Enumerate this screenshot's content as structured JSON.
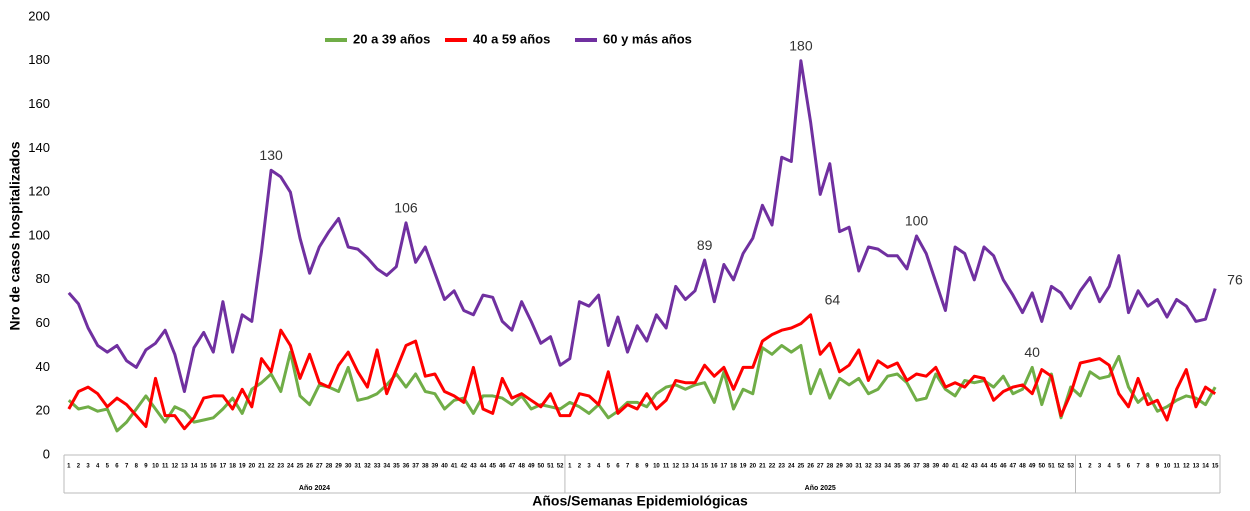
{
  "chart_data": {
    "type": "line",
    "y_label": "Nro de casos hospitalizados",
    "x_label": "Años/Semanas Epidemiológicas",
    "categories": [
      "1",
      "2",
      "3",
      "4",
      "5",
      "6",
      "7",
      "8",
      "9",
      "10",
      "11",
      "12",
      "13",
      "14",
      "15",
      "16",
      "17",
      "18",
      "19",
      "20",
      "21",
      "22",
      "23",
      "24",
      "25",
      "26",
      "27",
      "28",
      "29",
      "30",
      "31",
      "32",
      "33",
      "34",
      "35",
      "36",
      "37",
      "38",
      "39",
      "40",
      "41",
      "42",
      "43",
      "44",
      "45",
      "46",
      "47",
      "48",
      "49",
      "50",
      "51",
      "52",
      "1",
      "2",
      "3",
      "4",
      "5",
      "6",
      "7",
      "8",
      "9",
      "10",
      "11",
      "12",
      "13",
      "14",
      "15",
      "16",
      "17",
      "18",
      "19",
      "20",
      "21",
      "22",
      "23",
      "24",
      "25",
      "26",
      "27",
      "28",
      "29",
      "30",
      "31",
      "32",
      "33",
      "34",
      "35",
      "36",
      "37",
      "38",
      "39",
      "40",
      "41",
      "42",
      "43",
      "44",
      "45",
      "46",
      "47",
      "48",
      "49",
      "50",
      "51",
      "52",
      "53",
      "1",
      "2",
      "3",
      "4",
      "5",
      "6",
      "7",
      "8",
      "9",
      "10",
      "11",
      "12",
      "13",
      "14",
      "15"
    ],
    "groups": [
      "Año 2024",
      "Año 2025",
      null
    ],
    "ylim": [
      0,
      200
    ],
    "yticks": [
      0,
      20,
      40,
      60,
      80,
      100,
      120,
      140,
      160,
      180,
      200
    ],
    "grid": false,
    "legend": "top",
    "series": [
      {
        "name": "20 a 39 años",
        "color": "#70ad47",
        "values": [
          25,
          21,
          22,
          20,
          21,
          11,
          15,
          21,
          27,
          21,
          15,
          22,
          20,
          15,
          16,
          17,
          21,
          26,
          19,
          30,
          33,
          37,
          29,
          47,
          27,
          23,
          32,
          31,
          29,
          40,
          25,
          26,
          28,
          32,
          37,
          31,
          37,
          29,
          28,
          21,
          25,
          26,
          19,
          27,
          27,
          26,
          23,
          27,
          21,
          23,
          22,
          21,
          24,
          22,
          19,
          23,
          17,
          20,
          24,
          24,
          22,
          28,
          31,
          32,
          30,
          32,
          33,
          24,
          38,
          21,
          30,
          28,
          49,
          46,
          50,
          47,
          50,
          28,
          39,
          26,
          35,
          32,
          35,
          28,
          30,
          36,
          37,
          33,
          25,
          26,
          37,
          30,
          27,
          34,
          33,
          34,
          31,
          36,
          28,
          30,
          40,
          23,
          37,
          17,
          31,
          27,
          38,
          35,
          36,
          45,
          31,
          24,
          28,
          20,
          22,
          25,
          27,
          26,
          23,
          31
        ],
        "value_labels": [
          null,
          null,
          null,
          null,
          null,
          null,
          null,
          null,
          null,
          null,
          null,
          null,
          null,
          null,
          null,
          null,
          null,
          null,
          null,
          null,
          null,
          null,
          null,
          null,
          null,
          null,
          null,
          null,
          null,
          null,
          null,
          null,
          null,
          null,
          null,
          null,
          null,
          null,
          null,
          null,
          null,
          null,
          null,
          null,
          null,
          null,
          null,
          null,
          null,
          null,
          null,
          null,
          null,
          null,
          null,
          null,
          null,
          null,
          null,
          null,
          null,
          null,
          null,
          null,
          null,
          null,
          null,
          null,
          null,
          null,
          null,
          null,
          null,
          null,
          null,
          null,
          null,
          null,
          null,
          null,
          null,
          null,
          null,
          null,
          null,
          null,
          null,
          null,
          null,
          null,
          null,
          null,
          null,
          null,
          null,
          null,
          null,
          null,
          null,
          null,
          "40",
          null,
          null,
          null,
          null,
          null,
          null,
          null,
          null,
          null,
          null,
          null,
          null,
          null,
          null,
          null,
          null,
          null,
          null,
          null
        ]
      },
      {
        "name": "40 a 59 años",
        "color": "#ff0000",
        "values": [
          21,
          29,
          31,
          28,
          22,
          26,
          23,
          18,
          13,
          35,
          18,
          18,
          12,
          17,
          26,
          27,
          27,
          21,
          30,
          22,
          44,
          38,
          57,
          50,
          35,
          46,
          33,
          31,
          41,
          47,
          38,
          31,
          48,
          28,
          39,
          50,
          52,
          36,
          37,
          29,
          27,
          24,
          40,
          21,
          19,
          35,
          26,
          28,
          25,
          22,
          28,
          18,
          18,
          28,
          27,
          23,
          38,
          19,
          23,
          21,
          28,
          21,
          25,
          34,
          33,
          33,
          41,
          36,
          40,
          30,
          40,
          40,
          52,
          55,
          57,
          58,
          60,
          64,
          46,
          51,
          38,
          41,
          48,
          34,
          43,
          40,
          42,
          34,
          37,
          36,
          40,
          31,
          33,
          31,
          36,
          35,
          25,
          29,
          31,
          32,
          28,
          39,
          36,
          18,
          28,
          42,
          43,
          44,
          41,
          28,
          22,
          35,
          23,
          25,
          16,
          30,
          39,
          22,
          31,
          28
        ],
        "value_labels": [
          null,
          null,
          null,
          null,
          null,
          null,
          null,
          null,
          null,
          null,
          null,
          null,
          null,
          null,
          null,
          null,
          null,
          null,
          null,
          null,
          null,
          null,
          null,
          null,
          null,
          null,
          null,
          null,
          null,
          null,
          null,
          null,
          null,
          null,
          null,
          null,
          null,
          null,
          null,
          null,
          null,
          null,
          null,
          null,
          null,
          null,
          null,
          null,
          null,
          null,
          null,
          null,
          null,
          null,
          null,
          null,
          null,
          null,
          null,
          null,
          null,
          null,
          null,
          null,
          null,
          null,
          null,
          null,
          null,
          null,
          null,
          null,
          null,
          null,
          null,
          null,
          null,
          "64",
          null,
          null,
          null,
          null,
          null,
          null,
          null,
          null,
          null,
          null,
          null,
          null,
          null,
          null,
          null,
          null,
          null,
          null,
          null,
          null,
          null,
          null,
          null,
          null,
          null,
          null,
          null,
          null,
          null,
          null,
          null,
          null,
          null,
          null,
          null,
          null,
          null,
          null,
          null,
          null,
          null,
          null
        ]
      },
      {
        "name": "60 y más años",
        "color": "#7030a0",
        "values": [
          74,
          69,
          58,
          50,
          47,
          50,
          43,
          40,
          48,
          51,
          57,
          46,
          29,
          49,
          56,
          47,
          70,
          47,
          64,
          61,
          93,
          130,
          127,
          120,
          99,
          83,
          95,
          102,
          108,
          95,
          94,
          90,
          85,
          82,
          86,
          106,
          88,
          95,
          83,
          71,
          75,
          66,
          64,
          73,
          72,
          61,
          57,
          70,
          61,
          51,
          54,
          41,
          44,
          70,
          68,
          73,
          50,
          63,
          47,
          59,
          52,
          64,
          58,
          77,
          71,
          75,
          89,
          70,
          87,
          80,
          92,
          99,
          114,
          105,
          136,
          134,
          180,
          152,
          119,
          133,
          102,
          104,
          84,
          95,
          94,
          91,
          91,
          85,
          100,
          92,
          79,
          66,
          95,
          92,
          80,
          95,
          91,
          80,
          73,
          65,
          74,
          61,
          77,
          74,
          67,
          75,
          81,
          70,
          77,
          91,
          65,
          75,
          68,
          71,
          63,
          71,
          68,
          61,
          62,
          76
        ],
        "value_labels": [
          null,
          null,
          null,
          null,
          null,
          null,
          null,
          null,
          null,
          null,
          null,
          null,
          null,
          null,
          null,
          null,
          null,
          null,
          null,
          null,
          null,
          "130",
          null,
          null,
          null,
          null,
          null,
          null,
          null,
          null,
          null,
          null,
          null,
          null,
          null,
          "106",
          null,
          null,
          null,
          null,
          null,
          null,
          null,
          null,
          null,
          null,
          null,
          null,
          null,
          null,
          null,
          null,
          null,
          null,
          null,
          null,
          null,
          null,
          null,
          null,
          null,
          null,
          null,
          null,
          null,
          null,
          "89",
          null,
          null,
          null,
          null,
          null,
          null,
          null,
          null,
          null,
          "180",
          null,
          null,
          null,
          null,
          null,
          null,
          null,
          null,
          null,
          null,
          null,
          "100",
          null,
          null,
          null,
          null,
          null,
          null,
          null,
          null,
          null,
          null,
          null,
          null,
          null,
          null,
          null,
          null,
          null,
          null,
          null,
          null,
          null,
          null,
          null,
          null,
          null,
          null,
          null,
          null,
          null,
          null,
          "76"
        ]
      }
    ]
  }
}
